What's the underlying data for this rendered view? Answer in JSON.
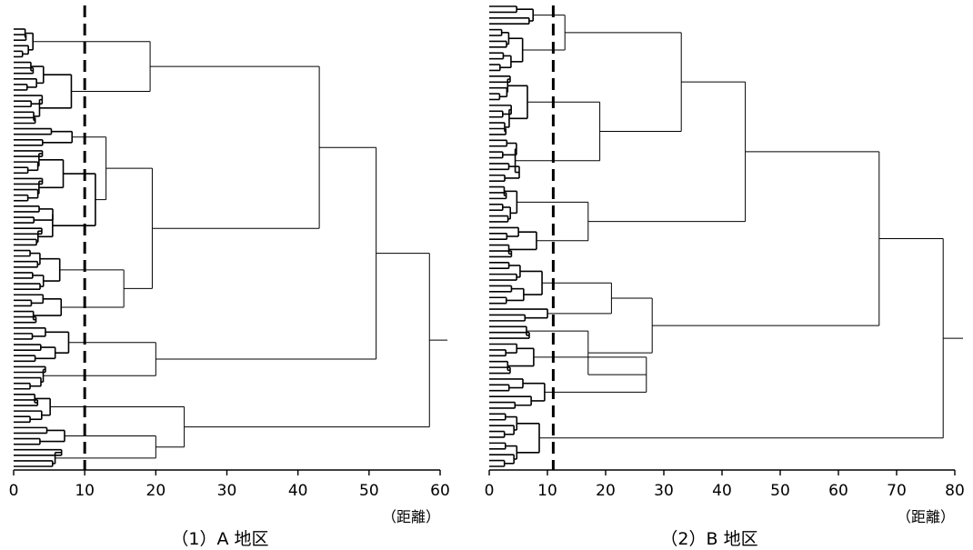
{
  "panels": [
    {
      "id": "a",
      "caption": "（1）A 地区",
      "unit_label": "（距離）",
      "x_axis": {
        "min": 0,
        "max": 60,
        "ticks": [
          0,
          10,
          20,
          30,
          40,
          50,
          60
        ]
      },
      "cut_distance": 10,
      "leaf_count": 80
    },
    {
      "id": "b",
      "caption": "（2）B 地区",
      "unit_label": "（距離）",
      "x_axis": {
        "min": 0,
        "max": 80,
        "ticks": [
          0,
          10,
          20,
          30,
          40,
          50,
          60,
          70,
          80
        ]
      },
      "cut_distance": 11,
      "leaf_count": 80
    }
  ],
  "colors": {
    "line": "#000000",
    "cut_line": "#000000",
    "background": "#ffffff"
  }
}
